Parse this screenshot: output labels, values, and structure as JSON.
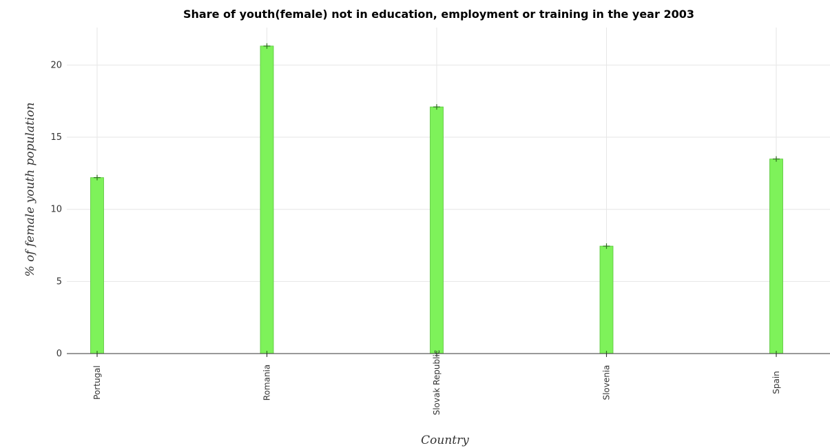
{
  "chart_data": {
    "type": "bar",
    "title": "Share of youth(female) not in education, employment or training in the year 2003",
    "xlabel": "Country",
    "ylabel": "% of female youth population",
    "categories": [
      "Portugal",
      "Romania",
      "Slovak Republic",
      "Slovenia",
      "Spain"
    ],
    "values": [
      12.2,
      21.32,
      17.1,
      7.45,
      13.49
    ],
    "ylim": [
      0,
      22.6
    ],
    "yticks": [
      "0",
      "5",
      "10",
      "15",
      "20"
    ],
    "grid": true,
    "bar_color": "#7ef25a"
  }
}
